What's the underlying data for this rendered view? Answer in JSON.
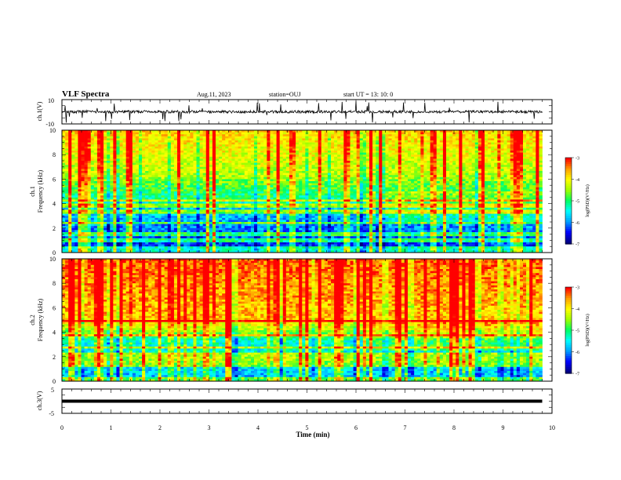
{
  "header": {
    "title": "VLF Spectra",
    "date": "Aug.11, 2023",
    "station": "station=OUJ",
    "start": "start  UT  =   13: 10: 0"
  },
  "chart_data": [
    {
      "type": "line",
      "panel": "ch1-waveform",
      "ylabel": "ch.1(V)",
      "ylim": [
        -10,
        10
      ],
      "yticks": [
        "10",
        "-10"
      ],
      "baseline": 0,
      "xlim": [
        0,
        10
      ]
    },
    {
      "type": "heatmap",
      "panel": "ch1-spectrogram",
      "ylabel": "ch.1\nFrequency (kHz)",
      "ylabel_top": "ch.1",
      "ylabel_bottom": "Frequency (kHz)",
      "ylim": [
        0,
        10
      ],
      "yticks": [
        "0",
        "2",
        "4",
        "6",
        "8",
        "10"
      ],
      "xlim": [
        0,
        10
      ],
      "colorbar": {
        "label": "log(PSD)(V²/Hz)",
        "range": [
          -7,
          -3
        ],
        "ticks": [
          "-3",
          "-4",
          "-5",
          "-6",
          "-7"
        ]
      },
      "data_end_min": 9.8
    },
    {
      "type": "heatmap",
      "panel": "ch2-spectrogram",
      "ylabel": "ch.2\nFrequency (kHz)",
      "ylabel_top": "ch.2",
      "ylabel_bottom": "Frequency (kHz)",
      "ylim": [
        0,
        10
      ],
      "yticks": [
        "0",
        "2",
        "4",
        "6",
        "8",
        "10"
      ],
      "xlim": [
        0,
        10
      ],
      "colorbar": {
        "label": "log(PSD)(V²/Hz)",
        "range": [
          -7,
          -3
        ],
        "ticks": [
          "-3",
          "-4",
          "-5",
          "-6",
          "-7"
        ]
      },
      "data_end_min": 9.8
    },
    {
      "type": "line",
      "panel": "ch3-waveform",
      "ylabel": "ch.3(V)",
      "ylim": [
        -5,
        5
      ],
      "yticks": [
        "5",
        "-5"
      ],
      "baseline": 0,
      "xlim": [
        0,
        10
      ],
      "xlabel": "Time (min)",
      "xticks": [
        "0",
        "1",
        "2",
        "3",
        "4",
        "5",
        "6",
        "7",
        "8",
        "9",
        "10"
      ]
    }
  ],
  "colors": {
    "colormap": [
      "#000080",
      "#0000ff",
      "#00a0ff",
      "#00ffff",
      "#00ff60",
      "#a0ff00",
      "#ffff00",
      "#ffa000",
      "#ff0000"
    ]
  }
}
